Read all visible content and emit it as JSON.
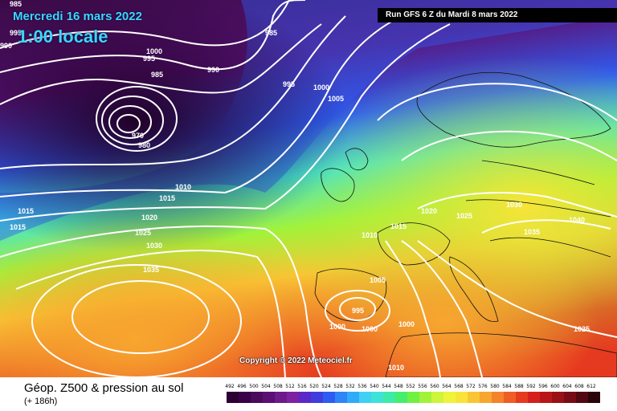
{
  "header": {
    "date": "Mercredi 16 mars 2022",
    "time": "1:00 locale",
    "run": "Run GFS 6 Z du Mardi 8 mars 2022"
  },
  "footer": {
    "title": "Géop. Z500 & pression au sol",
    "subtitle": "(+ 186h)",
    "copyright": "Copyright © 2022 Meteociel.fr"
  },
  "isobar_labels": [
    "985",
    "990",
    "995",
    "1000",
    "985",
    "990",
    "970",
    "980",
    "995",
    "985",
    "995",
    "1000",
    "1005",
    "1010",
    "1015",
    "1015",
    "1015",
    "1020",
    "1025",
    "1030",
    "1035",
    "1020",
    "1025",
    "1030",
    "1035",
    "1040",
    "1010",
    "1015",
    "1005",
    "995",
    "1000",
    "1000",
    "1000",
    "1010",
    "1025"
  ],
  "scale": {
    "labels": [
      "492",
      "496",
      "500",
      "504",
      "508",
      "512",
      "516",
      "520",
      "524",
      "528",
      "532",
      "536",
      "540",
      "544",
      "548",
      "552",
      "556",
      "560",
      "564",
      "568",
      "572",
      "576",
      "580",
      "584",
      "588",
      "592",
      "596",
      "600",
      "604",
      "608",
      "612"
    ],
    "colors": [
      "#2b0033",
      "#3a0047",
      "#4b0b5c",
      "#5b0f73",
      "#6d1a8a",
      "#7d22a1",
      "#5a28c8",
      "#3f3ddc",
      "#2f5cf0",
      "#2d85f7",
      "#30abf7",
      "#3fd0f4",
      "#3fe2d8",
      "#3eeaa8",
      "#45ee6e",
      "#70f042",
      "#a2f23a",
      "#cdf53a",
      "#eef43a",
      "#f8e438",
      "#f8c634",
      "#f7a62f",
      "#f4832a",
      "#ef5e25",
      "#e63a20",
      "#d4201d",
      "#b81619",
      "#9a1017",
      "#780c14",
      "#520810",
      "#2a0408"
    ]
  }
}
